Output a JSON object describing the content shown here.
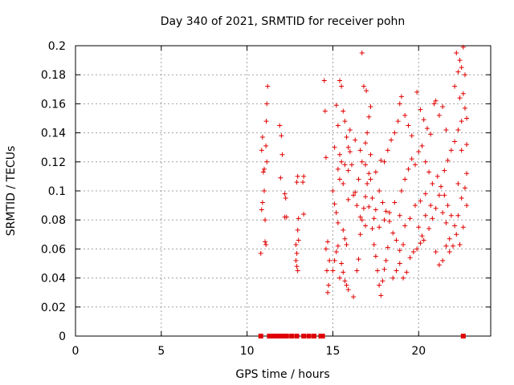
{
  "chart_data": {
    "type": "scatter",
    "title": "Day 340 of 2021, SRMTID for receiver pohn",
    "xlabel": "GPS time / hours",
    "ylabel": "SRMTID / TECUs",
    "xlim": [
      0,
      24.2
    ],
    "ylim": [
      0,
      0.2
    ],
    "x_ticks": [
      0,
      5,
      10,
      15,
      20
    ],
    "y_ticks": [
      0,
      0.02,
      0.04,
      0.06,
      0.08,
      0.1,
      0.12,
      0.14,
      0.16,
      0.18,
      0.2
    ],
    "x_tick_labels": [
      "0",
      "5",
      "10",
      "15",
      "20"
    ],
    "y_tick_labels": [
      "0",
      "0.02",
      "0.04",
      "0.06",
      "0.08",
      "0.1",
      "0.12",
      "0.14",
      "0.16",
      "0.18",
      "0.2"
    ],
    "grid": true,
    "series": [
      {
        "name": "SRMTID",
        "marker": "plus",
        "color": "#e00000",
        "points": [
          [
            10.8,
            0.057
          ],
          [
            10.85,
            0.087
          ],
          [
            10.9,
            0.092
          ],
          [
            10.95,
            0.113
          ],
          [
            11.0,
            0.115
          ],
          [
            11.05,
            0.065
          ],
          [
            11.1,
            0.131
          ],
          [
            11.12,
            0.148
          ],
          [
            11.15,
            0.16
          ],
          [
            11.2,
            0.172
          ],
          [
            10.9,
            0.137
          ],
          [
            11.0,
            0.1
          ],
          [
            11.05,
            0.08
          ],
          [
            11.1,
            0.063
          ],
          [
            11.15,
            0.12
          ],
          [
            10.85,
            0.128
          ],
          [
            11.9,
            0.145
          ],
          [
            12.0,
            0.138
          ],
          [
            12.05,
            0.125
          ],
          [
            11.95,
            0.109
          ],
          [
            12.2,
            0.098
          ],
          [
            12.25,
            0.095
          ],
          [
            12.3,
            0.082
          ],
          [
            12.2,
            0.082
          ],
          [
            12.85,
            0.063
          ],
          [
            12.9,
            0.057
          ],
          [
            12.95,
            0.073
          ],
          [
            13.0,
            0.081
          ],
          [
            12.85,
            0.052
          ],
          [
            12.9,
            0.048
          ],
          [
            12.95,
            0.045
          ],
          [
            13.0,
            0.066
          ],
          [
            12.9,
            0.106
          ],
          [
            12.95,
            0.11
          ],
          [
            13.3,
            0.11
          ],
          [
            13.25,
            0.106
          ],
          [
            13.3,
            0.084
          ],
          [
            14.5,
            0.176
          ],
          [
            14.55,
            0.155
          ],
          [
            14.6,
            0.123
          ],
          [
            14.6,
            0.06
          ],
          [
            14.65,
            0.045
          ],
          [
            14.7,
            0.03
          ],
          [
            14.75,
            0.035
          ],
          [
            14.7,
            0.065
          ],
          [
            14.8,
            0.052
          ],
          [
            15.0,
            0.1
          ],
          [
            15.1,
            0.091
          ],
          [
            15.2,
            0.085
          ],
          [
            15.3,
            0.078
          ],
          [
            15.4,
            0.108
          ],
          [
            15.5,
            0.12
          ],
          [
            15.6,
            0.073
          ],
          [
            15.7,
            0.067
          ],
          [
            15.8,
            0.063
          ],
          [
            15.9,
            0.094
          ],
          [
            15.2,
            0.159
          ],
          [
            15.4,
            0.176
          ],
          [
            15.5,
            0.172
          ],
          [
            15.3,
            0.145
          ],
          [
            15.6,
            0.155
          ],
          [
            15.7,
            0.148
          ],
          [
            15.8,
            0.137
          ],
          [
            15.9,
            0.13
          ],
          [
            16.0,
            0.142
          ],
          [
            16.1,
            0.118
          ],
          [
            15.0,
            0.045
          ],
          [
            15.1,
            0.052
          ],
          [
            15.2,
            0.058
          ],
          [
            15.3,
            0.062
          ],
          [
            15.4,
            0.04
          ],
          [
            15.5,
            0.05
          ],
          [
            15.6,
            0.044
          ],
          [
            15.7,
            0.038
          ],
          [
            15.8,
            0.035
          ],
          [
            15.9,
            0.032
          ],
          [
            16.2,
            0.027
          ],
          [
            16.4,
            0.045
          ],
          [
            16.5,
            0.053
          ],
          [
            16.6,
            0.07
          ],
          [
            16.7,
            0.08
          ],
          [
            16.8,
            0.088
          ],
          [
            16.9,
            0.096
          ],
          [
            17.0,
            0.105
          ],
          [
            17.1,
            0.112
          ],
          [
            17.2,
            0.125
          ],
          [
            16.3,
            0.099
          ],
          [
            16.5,
            0.108
          ],
          [
            16.7,
            0.12
          ],
          [
            16.9,
            0.133
          ],
          [
            17.0,
            0.14
          ],
          [
            17.1,
            0.151
          ],
          [
            17.2,
            0.158
          ],
          [
            16.8,
            0.172
          ],
          [
            16.95,
            0.169
          ],
          [
            16.7,
            0.195
          ],
          [
            17.3,
            0.074
          ],
          [
            17.4,
            0.063
          ],
          [
            17.5,
            0.055
          ],
          [
            17.6,
            0.045
          ],
          [
            17.7,
            0.035
          ],
          [
            17.8,
            0.028
          ],
          [
            17.9,
            0.038
          ],
          [
            18.0,
            0.046
          ],
          [
            18.1,
            0.052
          ],
          [
            18.2,
            0.061
          ],
          [
            17.3,
            0.095
          ],
          [
            17.5,
            0.087
          ],
          [
            17.7,
            0.1
          ],
          [
            17.9,
            0.092
          ],
          [
            18.1,
            0.086
          ],
          [
            18.3,
            0.079
          ],
          [
            18.5,
            0.071
          ],
          [
            18.7,
            0.066
          ],
          [
            18.9,
            0.059
          ],
          [
            19.1,
            0.063
          ],
          [
            18.0,
            0.12
          ],
          [
            18.2,
            0.128
          ],
          [
            18.4,
            0.135
          ],
          [
            18.6,
            0.14
          ],
          [
            18.8,
            0.148
          ],
          [
            18.9,
            0.16
          ],
          [
            19.0,
            0.165
          ],
          [
            19.2,
            0.152
          ],
          [
            19.4,
            0.145
          ],
          [
            19.6,
            0.138
          ],
          [
            18.5,
            0.04
          ],
          [
            18.7,
            0.045
          ],
          [
            18.9,
            0.05
          ],
          [
            19.1,
            0.04
          ],
          [
            19.3,
            0.044
          ],
          [
            19.5,
            0.054
          ],
          [
            19.7,
            0.058
          ],
          [
            19.9,
            0.06
          ],
          [
            20.1,
            0.064
          ],
          [
            20.3,
            0.066
          ],
          [
            19.0,
            0.1
          ],
          [
            19.2,
            0.108
          ],
          [
            19.4,
            0.115
          ],
          [
            19.6,
            0.122
          ],
          [
            19.8,
            0.118
          ],
          [
            20.0,
            0.127
          ],
          [
            20.2,
            0.131
          ],
          [
            20.4,
            0.12
          ],
          [
            20.6,
            0.113
          ],
          [
            20.8,
            0.105
          ],
          [
            19.9,
            0.168
          ],
          [
            20.1,
            0.156
          ],
          [
            20.3,
            0.149
          ],
          [
            20.5,
            0.143
          ],
          [
            20.7,
            0.139
          ],
          [
            20.9,
            0.16
          ],
          [
            21.0,
            0.162
          ],
          [
            21.2,
            0.152
          ],
          [
            21.4,
            0.158
          ],
          [
            21.6,
            0.142
          ],
          [
            20.0,
            0.075
          ],
          [
            20.2,
            0.069
          ],
          [
            20.4,
            0.083
          ],
          [
            20.6,
            0.074
          ],
          [
            20.8,
            0.081
          ],
          [
            21.0,
            0.088
          ],
          [
            21.2,
            0.097
          ],
          [
            21.4,
            0.085
          ],
          [
            21.6,
            0.078
          ],
          [
            21.8,
            0.067
          ],
          [
            21.0,
            0.058
          ],
          [
            21.2,
            0.049
          ],
          [
            21.4,
            0.052
          ],
          [
            21.6,
            0.062
          ],
          [
            21.8,
            0.058
          ],
          [
            22.0,
            0.062
          ],
          [
            22.2,
            0.07
          ],
          [
            22.4,
            0.063
          ],
          [
            22.6,
            0.075
          ],
          [
            22.8,
            0.09
          ],
          [
            21.5,
            0.114
          ],
          [
            21.7,
            0.121
          ],
          [
            21.9,
            0.128
          ],
          [
            22.1,
            0.134
          ],
          [
            22.3,
            0.142
          ],
          [
            22.5,
            0.148
          ],
          [
            22.7,
            0.157
          ],
          [
            22.8,
            0.15
          ],
          [
            22.4,
            0.164
          ],
          [
            22.6,
            0.167
          ],
          [
            22.2,
            0.195
          ],
          [
            22.4,
            0.19
          ],
          [
            22.6,
            0.199
          ],
          [
            22.5,
            0.185
          ],
          [
            22.3,
            0.182
          ],
          [
            22.1,
            0.172
          ],
          [
            22.7,
            0.18
          ],
          [
            22.8,
            0.132
          ],
          [
            22.5,
            0.128
          ],
          [
            22.3,
            0.105
          ],
          [
            15.3,
            0.115
          ],
          [
            15.6,
            0.105
          ],
          [
            15.9,
            0.114
          ],
          [
            16.2,
            0.097
          ],
          [
            16.4,
            0.09
          ],
          [
            16.6,
            0.082
          ],
          [
            16.9,
            0.076
          ],
          [
            17.1,
            0.089
          ],
          [
            17.4,
            0.081
          ],
          [
            17.7,
            0.075
          ],
          [
            15.1,
            0.13
          ],
          [
            15.4,
            0.125
          ],
          [
            15.7,
            0.118
          ],
          [
            16.0,
            0.127
          ],
          [
            16.3,
            0.135
          ],
          [
            16.6,
            0.128
          ],
          [
            16.9,
            0.118
          ],
          [
            17.2,
            0.108
          ],
          [
            17.5,
            0.113
          ],
          [
            17.8,
            0.121
          ],
          [
            18.0,
            0.08
          ],
          [
            18.3,
            0.085
          ],
          [
            18.6,
            0.092
          ],
          [
            18.9,
            0.083
          ],
          [
            19.2,
            0.076
          ],
          [
            19.5,
            0.081
          ],
          [
            19.8,
            0.09
          ],
          [
            20.1,
            0.093
          ],
          [
            20.4,
            0.098
          ],
          [
            20.7,
            0.09
          ],
          [
            21.1,
            0.11
          ],
          [
            21.3,
            0.103
          ],
          [
            21.5,
            0.097
          ],
          [
            21.7,
            0.09
          ],
          [
            21.9,
            0.083
          ],
          [
            22.1,
            0.076
          ],
          [
            22.3,
            0.083
          ],
          [
            22.5,
            0.095
          ],
          [
            22.7,
            0.102
          ],
          [
            22.8,
            0.112
          ]
        ]
      },
      {
        "name": "zero",
        "marker": "square",
        "color": "#e00000",
        "points": [
          [
            10.8,
            0
          ],
          [
            11.3,
            0
          ],
          [
            11.5,
            0
          ],
          [
            11.7,
            0
          ],
          [
            11.9,
            0
          ],
          [
            12.0,
            0
          ],
          [
            12.1,
            0
          ],
          [
            12.2,
            0
          ],
          [
            12.3,
            0
          ],
          [
            12.6,
            0
          ],
          [
            12.9,
            0
          ],
          [
            13.3,
            0
          ],
          [
            13.6,
            0
          ],
          [
            13.9,
            0
          ],
          [
            14.3,
            0
          ],
          [
            14.4,
            0
          ],
          [
            22.6,
            0
          ]
        ]
      }
    ]
  }
}
